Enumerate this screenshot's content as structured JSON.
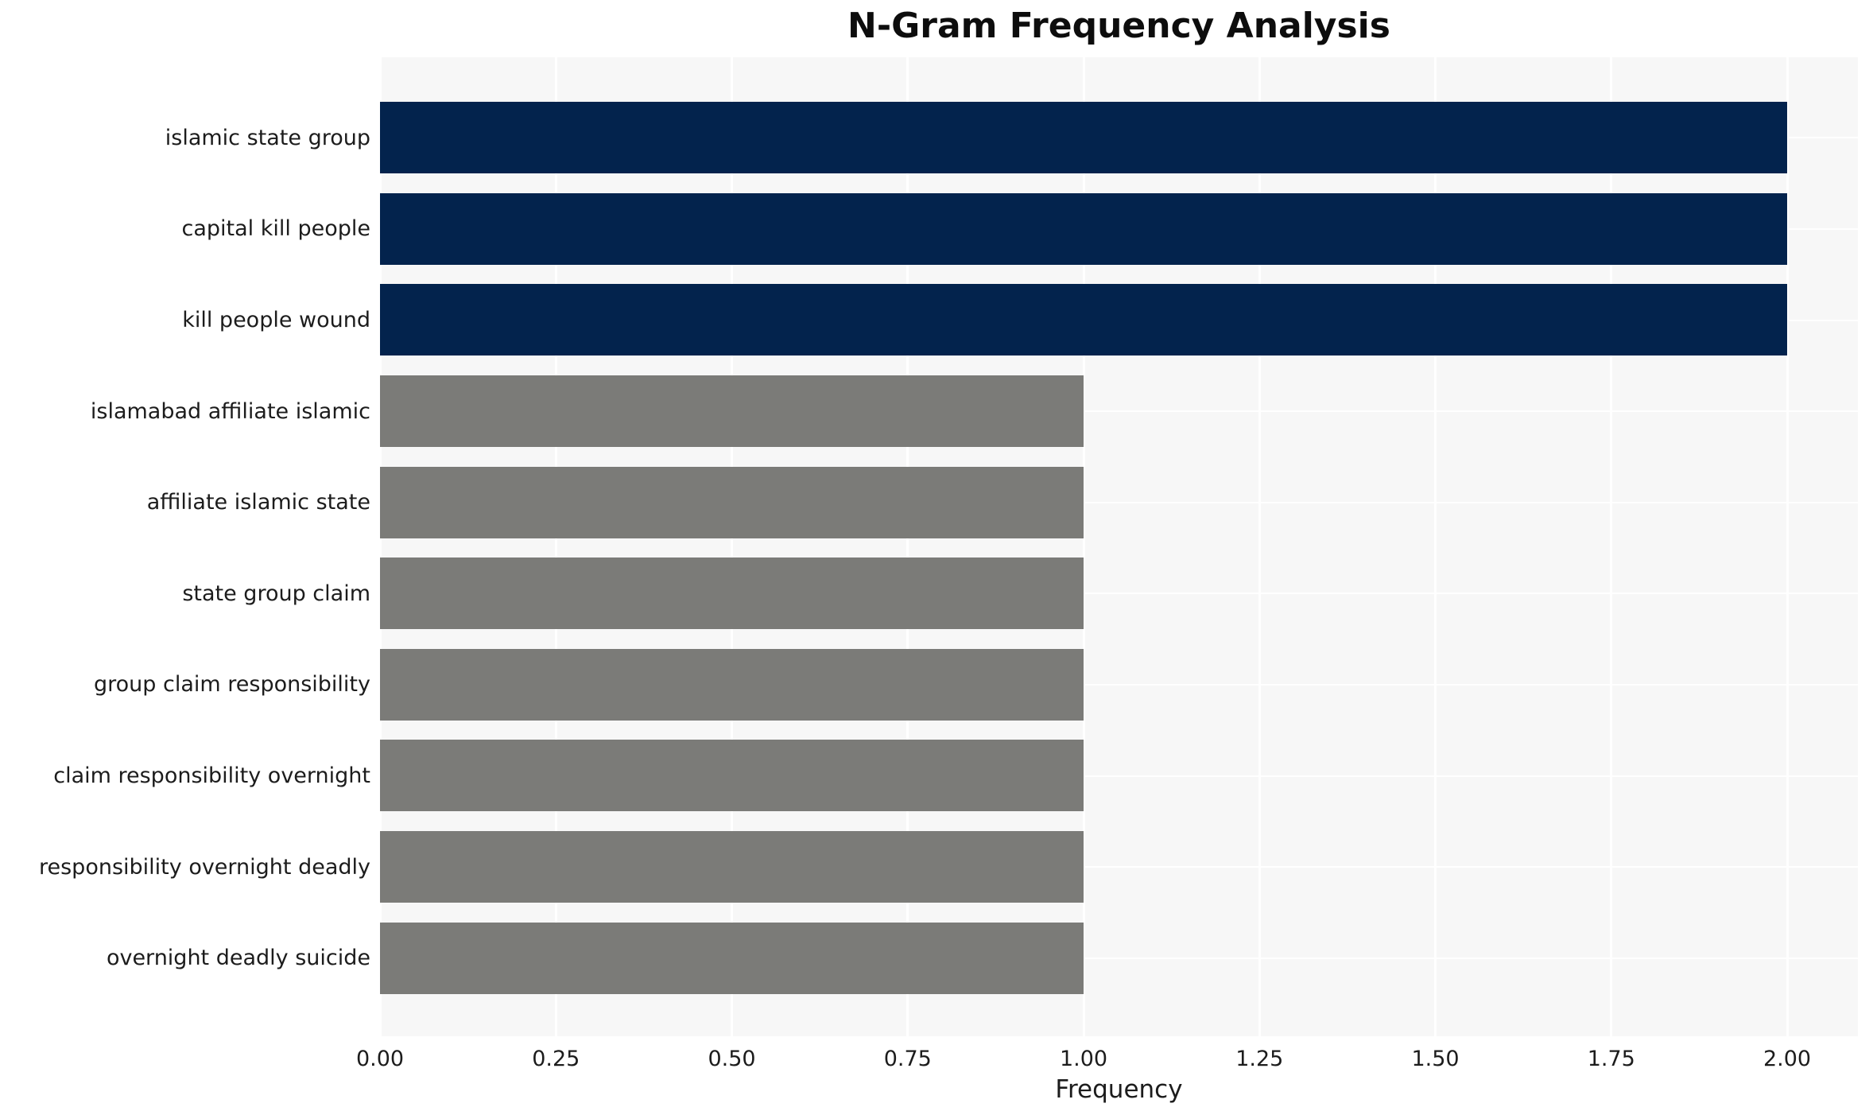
{
  "title": "N-Gram Frequency Analysis",
  "chart_data": {
    "type": "bar",
    "orientation": "horizontal",
    "title": "N-Gram Frequency Analysis",
    "xlabel": "Frequency",
    "ylabel": "",
    "categories": [
      "islamic state group",
      "capital kill people",
      "kill people wound",
      "islamabad affiliate islamic",
      "affiliate islamic state",
      "state group claim",
      "group claim responsibility",
      "claim responsibility overnight",
      "responsibility overnight deadly",
      "overnight deadly suicide"
    ],
    "values": [
      2,
      2,
      2,
      1,
      1,
      1,
      1,
      1,
      1,
      1
    ],
    "bar_colors": [
      "#03234d",
      "#03234d",
      "#03234d",
      "#7b7b78",
      "#7b7b78",
      "#7b7b78",
      "#7b7b78",
      "#7b7b78",
      "#7b7b78",
      "#7b7b78"
    ],
    "xlim": [
      0,
      2.1
    ],
    "xticks": [
      "0.00",
      "0.25",
      "0.50",
      "0.75",
      "1.00",
      "1.25",
      "1.50",
      "1.75",
      "2.00"
    ],
    "grid": true,
    "legend": null,
    "colors": {
      "high_frequency_bar": "#03234d",
      "low_frequency_bar": "#7b7b78",
      "plot_background": "#f7f7f7",
      "gridline": "#ffffff",
      "text": "#1c1c1c"
    }
  }
}
